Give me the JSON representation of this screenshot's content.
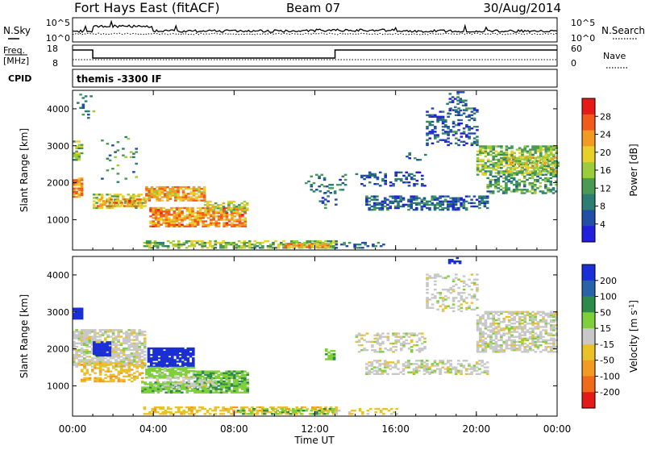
{
  "header": {
    "station": "Fort Hays East (fitACF)",
    "beam": "Beam 07",
    "date": "30/Aug/2014"
  },
  "noise_panel": {
    "left_label": "N.Sky",
    "right_label": "N.Search",
    "left_ticks": [
      "10^5",
      "10^0"
    ],
    "right_ticks": [
      "10^5",
      "10^0"
    ]
  },
  "freq_panel": {
    "left_label_1": "Freq.",
    "left_label_2": "[MHz]",
    "right_label": "Nave",
    "left_ticks": [
      "18",
      "8"
    ],
    "right_ticks": [
      "60",
      "0"
    ]
  },
  "cpid_panel": {
    "label": "CPID",
    "text": "themis -3300 IF"
  },
  "colors": {
    "power_scale": [
      "#1f1fdc",
      "#234ea6",
      "#2e7d72",
      "#4a9a55",
      "#9ccc3c",
      "#e9cf2a",
      "#f39a23",
      "#f05a1a",
      "#e41b16"
    ],
    "velocity_scale": [
      "#1b2fd6",
      "#2a62a8",
      "#2e8a4a",
      "#7fcf3a",
      "#c8c8c8",
      "#e9c22a",
      "#f29a21",
      "#f06a1c",
      "#e21a1a"
    ]
  },
  "chart_data": [
    {
      "type": "heatmap",
      "name": "power",
      "ylabel": "Slant Range [km]",
      "yticks": [
        1000,
        2000,
        3000,
        4000
      ],
      "ylim": [
        180,
        4500
      ],
      "xlim": [
        0,
        24
      ],
      "colorbar_label": "Power [dB]",
      "colorbar_ticks": [
        4,
        8,
        12,
        16,
        20,
        24,
        28
      ],
      "colorbar_range": [
        0,
        30
      ],
      "regions": [
        {
          "t": [
            0.0,
            0.5
          ],
          "r": [
            1600,
            2100
          ],
          "v": 22,
          "d": 0.8
        },
        {
          "t": [
            0.0,
            0.4
          ],
          "r": [
            2600,
            3100
          ],
          "v": 14,
          "d": 0.6
        },
        {
          "t": [
            0.2,
            1.0
          ],
          "r": [
            3600,
            4400
          ],
          "v": 10,
          "d": 0.15
        },
        {
          "t": [
            1.0,
            3.5
          ],
          "r": [
            1300,
            1700
          ],
          "v": 16,
          "d": 0.6
        },
        {
          "t": [
            1.2,
            3.6
          ],
          "r": [
            1350,
            1550
          ],
          "v": 22,
          "d": 0.5
        },
        {
          "t": [
            3.6,
            6.5
          ],
          "r": [
            1500,
            1900
          ],
          "v": 21,
          "d": 0.8
        },
        {
          "t": [
            3.8,
            8.6
          ],
          "r": [
            800,
            1300
          ],
          "v": 22,
          "d": 0.8
        },
        {
          "t": [
            6.5,
            8.7
          ],
          "r": [
            1200,
            1500
          ],
          "v": 17,
          "d": 0.5
        },
        {
          "t": [
            1.4,
            3.2
          ],
          "r": [
            2000,
            3300
          ],
          "v": 10,
          "d": 0.1
        },
        {
          "t": [
            3.5,
            13.0
          ],
          "r": [
            220,
            420
          ],
          "v": 14,
          "d": 0.55
        },
        {
          "t": [
            10.5,
            12.6
          ],
          "r": [
            240,
            360
          ],
          "v": 20,
          "d": 0.8
        },
        {
          "t": [
            13.0,
            15.5
          ],
          "r": [
            220,
            360
          ],
          "v": 8,
          "d": 0.25
        },
        {
          "t": [
            11.5,
            13.5
          ],
          "r": [
            1700,
            2200
          ],
          "v": 8,
          "d": 0.25
        },
        {
          "t": [
            12.2,
            13.0
          ],
          "r": [
            1300,
            1800
          ],
          "v": 7,
          "d": 0.15
        },
        {
          "t": [
            14.5,
            20.5
          ],
          "r": [
            1250,
            1650
          ],
          "v": 6,
          "d": 0.55
        },
        {
          "t": [
            14.0,
            17.5
          ],
          "r": [
            1900,
            2300
          ],
          "v": 5,
          "d": 0.35
        },
        {
          "t": [
            17.5,
            20.0
          ],
          "r": [
            3000,
            4000
          ],
          "v": 6,
          "d": 0.35
        },
        {
          "t": [
            16.5,
            17.5
          ],
          "r": [
            2600,
            2800
          ],
          "v": 6,
          "d": 0.3
        },
        {
          "t": [
            20.0,
            24.0
          ],
          "r": [
            2200,
            3000
          ],
          "v": 14,
          "d": 0.65
        },
        {
          "t": [
            20.5,
            24.0
          ],
          "r": [
            1700,
            2200
          ],
          "v": 11,
          "d": 0.5
        },
        {
          "t": [
            21.5,
            24.0
          ],
          "r": [
            2300,
            2700
          ],
          "v": 17,
          "d": 0.4
        },
        {
          "t": [
            18.5,
            19.5
          ],
          "r": [
            3800,
            4500
          ],
          "v": 6,
          "d": 0.3
        }
      ]
    },
    {
      "type": "heatmap",
      "name": "velocity",
      "ylabel": "Slant Range [km]",
      "yticks": [
        1000,
        2000,
        3000,
        4000
      ],
      "ylim": [
        180,
        4500
      ],
      "xlabel": "Time UT",
      "xticks": [
        "00:00",
        "04:00",
        "08:00",
        "12:00",
        "16:00",
        "20:00",
        "00:00"
      ],
      "xlim": [
        0,
        24
      ],
      "colorbar_label": "Velocity [m s-1]",
      "colorbar_ticks": [
        200,
        100,
        50,
        15,
        -15,
        -50,
        -100,
        -200
      ],
      "colorbar_range": [
        -250,
        250
      ],
      "regions": [
        {
          "t": [
            0.0,
            3.6
          ],
          "r": [
            1500,
            2500
          ],
          "v": 0,
          "d": 0.7
        },
        {
          "t": [
            0.0,
            0.5
          ],
          "r": [
            2800,
            3100
          ],
          "v": 230,
          "d": 0.9
        },
        {
          "t": [
            1.0,
            1.8
          ],
          "r": [
            1800,
            2200
          ],
          "v": 230,
          "d": 0.9
        },
        {
          "t": [
            0.4,
            3.5
          ],
          "r": [
            1100,
            1600
          ],
          "v": -40,
          "d": 0.5
        },
        {
          "t": [
            3.7,
            6.0
          ],
          "r": [
            1500,
            2000
          ],
          "v": 230,
          "d": 0.9
        },
        {
          "t": [
            3.6,
            6.0
          ],
          "r": [
            1200,
            1500
          ],
          "v": 30,
          "d": 0.8
        },
        {
          "t": [
            3.4,
            8.7
          ],
          "r": [
            800,
            1100
          ],
          "v": 40,
          "d": 0.85
        },
        {
          "t": [
            6.0,
            8.7
          ],
          "r": [
            1100,
            1400
          ],
          "v": 45,
          "d": 0.75
        },
        {
          "t": [
            4.0,
            7.0
          ],
          "r": [
            950,
            1250
          ],
          "v": 0,
          "d": 0.4
        },
        {
          "t": [
            3.5,
            13.0
          ],
          "r": [
            220,
            420
          ],
          "v": -35,
          "d": 0.5
        },
        {
          "t": [
            8.0,
            13.0
          ],
          "r": [
            220,
            380
          ],
          "v": 45,
          "d": 0.3
        },
        {
          "t": [
            12.5,
            13.0
          ],
          "r": [
            1700,
            2000
          ],
          "v": 40,
          "d": 0.5
        },
        {
          "t": [
            13.0,
            16.0
          ],
          "r": [
            220,
            360
          ],
          "v": -20,
          "d": 0.25
        },
        {
          "t": [
            14.5,
            20.5
          ],
          "r": [
            1300,
            1700
          ],
          "v": 0,
          "d": 0.5
        },
        {
          "t": [
            14.0,
            17.5
          ],
          "r": [
            1900,
            2400
          ],
          "v": 0,
          "d": 0.35
        },
        {
          "t": [
            17.5,
            20.0
          ],
          "r": [
            3000,
            4000
          ],
          "v": 0,
          "d": 0.3
        },
        {
          "t": [
            20.0,
            24.0
          ],
          "r": [
            1900,
            3000
          ],
          "v": 0,
          "d": 0.6
        },
        {
          "t": [
            18.6,
            19.2
          ],
          "r": [
            4300,
            4500
          ],
          "v": 230,
          "d": 0.6
        }
      ]
    }
  ]
}
